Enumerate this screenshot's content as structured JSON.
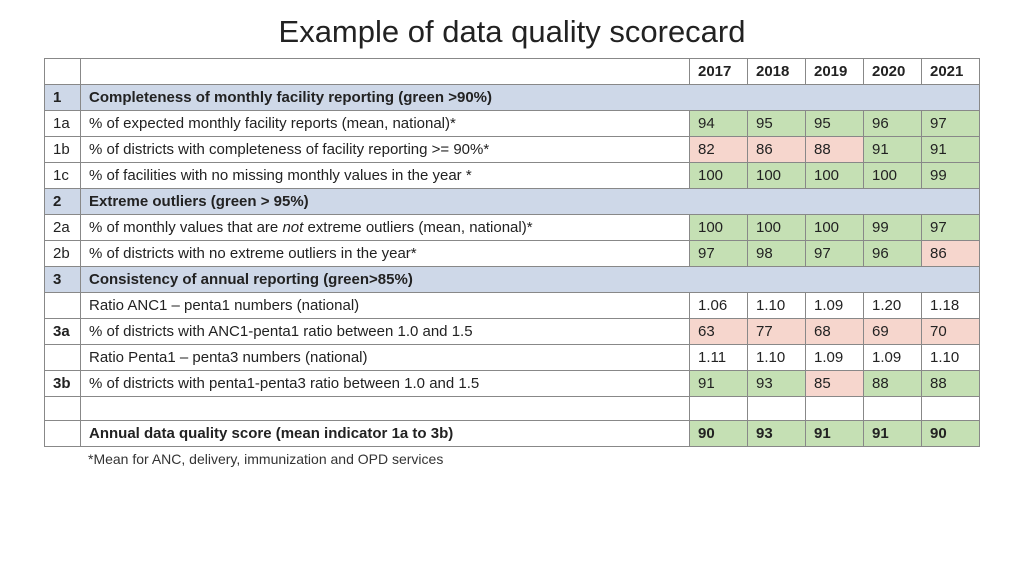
{
  "title": "Example of data quality scorecard",
  "footnote": "*Mean for ANC, delivery, immunization and OPD services",
  "years": [
    "2017",
    "2018",
    "2019",
    "2020",
    "2021"
  ],
  "colors": {
    "section_bg": "#ced8e8",
    "green": "#c5e0b4",
    "red": "#f6d6cd",
    "border": "#888888",
    "text": "#222222"
  },
  "sections": [
    {
      "code": "1",
      "label": "Completeness of monthly facility reporting (green >90%)",
      "threshold_green": 90,
      "rows": [
        {
          "code": "1a",
          "desc_html": "% of expected monthly facility reports (mean, national)*",
          "cells": [
            {
              "v": "94",
              "c": "green"
            },
            {
              "v": "95",
              "c": "green"
            },
            {
              "v": "95",
              "c": "green"
            },
            {
              "v": "96",
              "c": "green"
            },
            {
              "v": "97",
              "c": "green"
            }
          ]
        },
        {
          "code": "1b",
          "desc_html": "% of districts with completeness of facility reporting >= 90%*",
          "cells": [
            {
              "v": "82",
              "c": "red"
            },
            {
              "v": "86",
              "c": "red"
            },
            {
              "v": "88",
              "c": "red"
            },
            {
              "v": "91",
              "c": "green"
            },
            {
              "v": "91",
              "c": "green"
            }
          ]
        },
        {
          "code": "1c",
          "desc_html": "% of facilities with no missing monthly values in the year *",
          "cells": [
            {
              "v": "100",
              "c": "green"
            },
            {
              "v": "100",
              "c": "green"
            },
            {
              "v": "100",
              "c": "green"
            },
            {
              "v": "100",
              "c": "green"
            },
            {
              "v": "99",
              "c": "green"
            }
          ]
        }
      ]
    },
    {
      "code": "2",
      "label": "Extreme outliers (green > 95%)",
      "threshold_green": 95,
      "rows": [
        {
          "code": "2a",
          "desc_html": "% of monthly values that are <em class=\"i\">not</em> extreme outliers (mean, national)*",
          "cells": [
            {
              "v": "100",
              "c": "green"
            },
            {
              "v": "100",
              "c": "green"
            },
            {
              "v": "100",
              "c": "green"
            },
            {
              "v": "99",
              "c": "green"
            },
            {
              "v": "97",
              "c": "green"
            }
          ]
        },
        {
          "code": "2b",
          "desc_html": "% of districts with no extreme outliers in the year*",
          "cells": [
            {
              "v": "97",
              "c": "green"
            },
            {
              "v": "98",
              "c": "green"
            },
            {
              "v": "97",
              "c": "green"
            },
            {
              "v": "96",
              "c": "green"
            },
            {
              "v": "86",
              "c": "red"
            }
          ]
        }
      ]
    },
    {
      "code": "3",
      "label": "Consistency of annual reporting (green>85%)",
      "threshold_green": 85,
      "rows": [
        {
          "code": "",
          "desc_html": "Ratio ANC1 – penta1 numbers (national)",
          "cells": [
            {
              "v": "1.06",
              "c": "none"
            },
            {
              "v": "1.10",
              "c": "none"
            },
            {
              "v": "1.09",
              "c": "none"
            },
            {
              "v": "1.20",
              "c": "none"
            },
            {
              "v": "1.18",
              "c": "none"
            }
          ]
        },
        {
          "code": "3a",
          "code_bold": true,
          "desc_html": "% of districts with ANC1-penta1 ratio between 1.0 and 1.5",
          "cells": [
            {
              "v": "63",
              "c": "red"
            },
            {
              "v": "77",
              "c": "red"
            },
            {
              "v": "68",
              "c": "red"
            },
            {
              "v": "69",
              "c": "red"
            },
            {
              "v": "70",
              "c": "red"
            }
          ]
        },
        {
          "code": "",
          "desc_html": "Ratio Penta1 – penta3 numbers (national)",
          "cells": [
            {
              "v": "1.11",
              "c": "none"
            },
            {
              "v": "1.10",
              "c": "none"
            },
            {
              "v": "1.09",
              "c": "none"
            },
            {
              "v": "1.09",
              "c": "none"
            },
            {
              "v": "1.10",
              "c": "none"
            }
          ]
        },
        {
          "code": "3b",
          "code_bold": true,
          "desc_html": "% of districts with penta1-penta3 ratio between 1.0 and 1.5",
          "cells": [
            {
              "v": "91",
              "c": "green"
            },
            {
              "v": "93",
              "c": "green"
            },
            {
              "v": "85",
              "c": "red"
            },
            {
              "v": "88",
              "c": "green"
            },
            {
              "v": "88",
              "c": "green"
            }
          ]
        }
      ]
    }
  ],
  "summary": {
    "label": "Annual data quality score (mean indicator 1a to 3b)",
    "cells": [
      {
        "v": "90",
        "c": "green"
      },
      {
        "v": "93",
        "c": "green"
      },
      {
        "v": "91",
        "c": "green"
      },
      {
        "v": "91",
        "c": "green"
      },
      {
        "v": "90",
        "c": "green"
      }
    ]
  }
}
